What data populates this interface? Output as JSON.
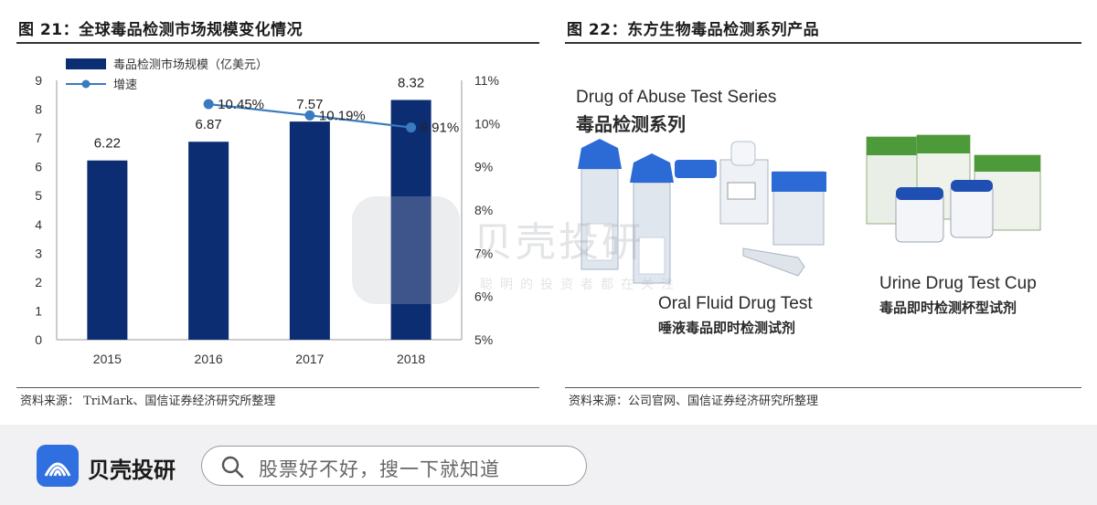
{
  "left_panel": {
    "title": "图 21：全球毒品检测市场规模变化情况",
    "source": "资料来源：  TriMark、国信证券经济研究所整理"
  },
  "right_panel": {
    "title": "图 22：东方生物毒品检测系列产品",
    "source": "资料来源：公司官网、国信证券经济研究所整理",
    "series_en": "Drug of Abuse Test Series",
    "series_cn": "毒品检测系列",
    "oral_en": "Oral Fluid Drug Test",
    "oral_cn": "唾液毒品即时检测试剂",
    "cup_en": "Urine Drug Test Cup",
    "cup_cn": "毒品即时检测杯型试剂"
  },
  "watermark": {
    "title": "贝壳投研",
    "subtitle": "聪明的投资者都在关注"
  },
  "bottom_bar": {
    "brand": "贝壳投研",
    "search_placeholder": "股票好不好，搜一下就知道"
  },
  "colors": {
    "bar": "#0d2d73",
    "line": "#3a7bbf",
    "brand": "#2f6fe0"
  },
  "chart_data": {
    "type": "bar",
    "categories": [
      "2015",
      "2016",
      "2017",
      "2018"
    ],
    "series": [
      {
        "name": "毒品检测市场规模（亿美元）",
        "type": "bar",
        "axis": "left",
        "values": [
          6.22,
          6.87,
          7.57,
          8.32
        ],
        "labels": [
          "6.22",
          "6.87",
          "7.57",
          "8.32"
        ]
      },
      {
        "name": "增速",
        "type": "line",
        "axis": "right",
        "values": [
          null,
          10.45,
          10.19,
          9.91
        ],
        "labels": [
          "",
          "10.45%",
          "10.19%",
          "9.91%"
        ]
      }
    ],
    "left_axis": {
      "ylim": [
        0,
        9
      ],
      "ticks": [
        "0",
        "1",
        "2",
        "3",
        "4",
        "5",
        "6",
        "7",
        "8",
        "9"
      ]
    },
    "right_axis": {
      "ylim": [
        5,
        11
      ],
      "ticks": [
        "5%",
        "6%",
        "7%",
        "8%",
        "9%",
        "10%",
        "11%"
      ]
    },
    "legend": "top-left",
    "grid": false
  }
}
